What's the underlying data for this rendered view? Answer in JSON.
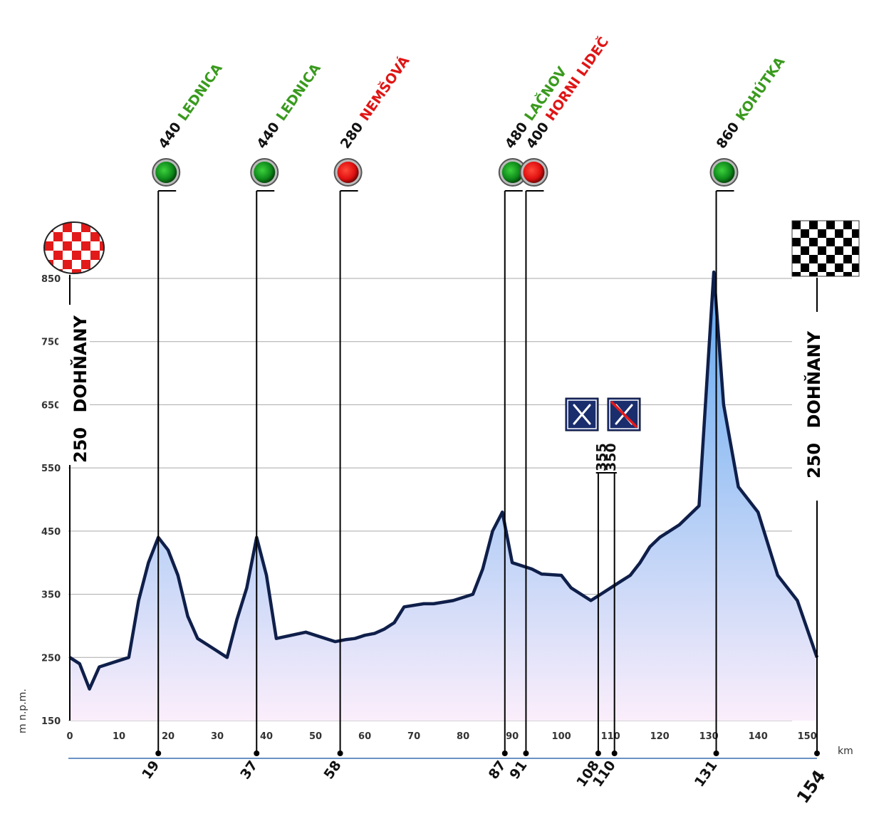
{
  "chart_data": {
    "type": "area",
    "title": "",
    "ylabel": "m n.p.m.",
    "xlabel": "km",
    "xlim": [
      0,
      152
    ],
    "ylim": [
      150,
      850
    ],
    "y_ticks": [
      150,
      250,
      350,
      450,
      550,
      650,
      750,
      850
    ],
    "x_ticks": [
      0,
      10,
      20,
      30,
      40,
      50,
      60,
      70,
      80,
      90,
      100,
      110,
      120,
      130,
      140,
      150
    ],
    "grid": true,
    "fill_top_color": "#5fa8f0",
    "fill_bottom_color": "#fbeefb",
    "line_color": "#0f1f4a",
    "profile": {
      "x": [
        0,
        2,
        4,
        6,
        10,
        12,
        14,
        16,
        18,
        20,
        22,
        24,
        26,
        28,
        30,
        32,
        34,
        36,
        38,
        40,
        42,
        48,
        54,
        56,
        58,
        60,
        62,
        64,
        66,
        68,
        72,
        74,
        78,
        82,
        84,
        86,
        88,
        90,
        94,
        96,
        100,
        102,
        106,
        108,
        112,
        114,
        116,
        118,
        120,
        122,
        124,
        128,
        131,
        133,
        136,
        140,
        144,
        148,
        152
      ],
      "y": [
        250,
        240,
        200,
        235,
        245,
        250,
        340,
        400,
        440,
        420,
        380,
        315,
        280,
        270,
        260,
        250,
        310,
        360,
        440,
        380,
        280,
        290,
        275,
        278,
        280,
        285,
        288,
        295,
        305,
        330,
        335,
        335,
        340,
        350,
        390,
        450,
        480,
        400,
        390,
        382,
        380,
        360,
        340,
        350,
        370,
        380,
        400,
        425,
        440,
        450,
        460,
        490,
        860,
        650,
        520,
        480,
        380,
        340,
        250
      ]
    },
    "markers": [
      {
        "km_label": "19",
        "km": 18,
        "type": "climb",
        "elevation": "440",
        "name": "LEDNICA",
        "color": "green"
      },
      {
        "km_label": "37",
        "km": 38,
        "type": "climb",
        "elevation": "440",
        "name": "LEDNICA",
        "color": "green"
      },
      {
        "km_label": "58",
        "km": 55,
        "type": "climb",
        "elevation": "280",
        "name": "NEMŠOVÁ",
        "color": "red"
      },
      {
        "km_label": "87",
        "km": 88.5,
        "type": "climb",
        "elevation": "480",
        "name": "LAČNOV",
        "color": "green"
      },
      {
        "km_label": "91",
        "km": 92.8,
        "type": "climb",
        "elevation": "400",
        "name": "HORNI LIDEČ",
        "color": "red"
      },
      {
        "km_label": "108",
        "km": 107.5,
        "type": "feed",
        "elevation": "350",
        "name": "feed-zone-start-icon",
        "color": "navy"
      },
      {
        "km_label": "110",
        "km": 110.8,
        "type": "feed",
        "elevation": "355",
        "name": "feed-zone-end-icon",
        "color": "navy"
      },
      {
        "km_label": "131",
        "km": 131.5,
        "type": "climb",
        "elevation": "860",
        "name": "KOHÚTKA",
        "color": "green"
      }
    ],
    "start": {
      "elevation": "250",
      "name": "DOHŇANY",
      "icon": "start-checkered-oval-icon"
    },
    "finish": {
      "elevation": "250",
      "name": "DOHŇANY",
      "km_label": "154",
      "icon": "finish-checkered-flag-icon"
    },
    "distance_unit": "km"
  }
}
